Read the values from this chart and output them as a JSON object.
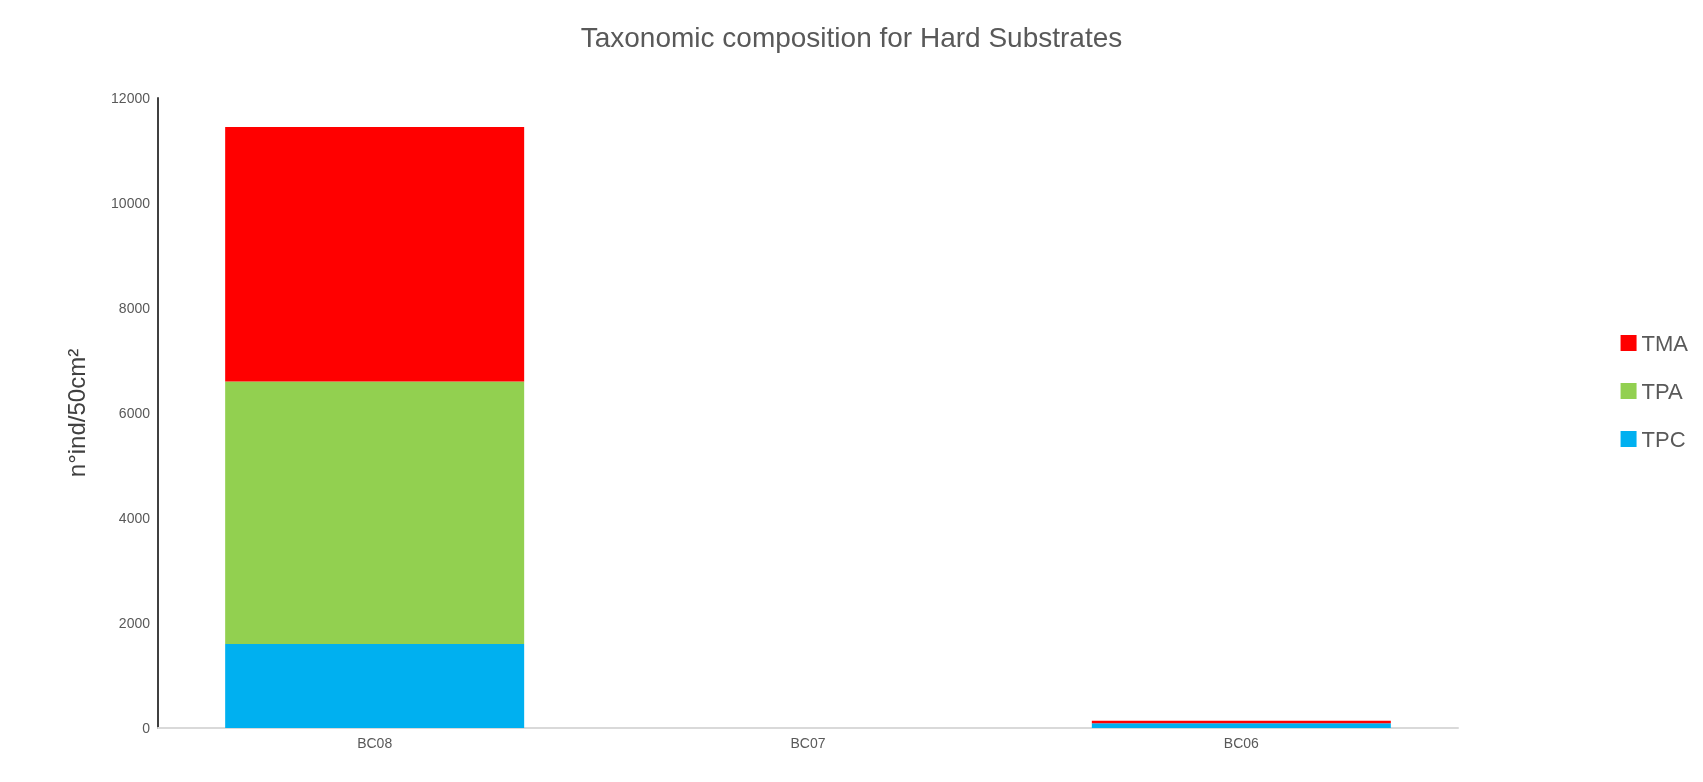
{
  "chart_data": {
    "type": "bar",
    "title": "Taxonomic composition for Hard Substrates",
    "ylabel": "n°ind/50cm²",
    "categories": [
      "BC08",
      "BC07",
      "BC06"
    ],
    "stacked": true,
    "series": [
      {
        "name": "TPC",
        "color": "#00b0f0",
        "values": [
          1600,
          0,
          90
        ]
      },
      {
        "name": "TPA",
        "color": "#92d050",
        "values": [
          5000,
          0,
          0
        ]
      },
      {
        "name": "TMA",
        "color": "#ff0000",
        "values": [
          4850,
          0,
          50
        ]
      }
    ],
    "ylim": [
      0,
      12000
    ],
    "yticks": [
      0,
      2000,
      4000,
      6000,
      8000,
      10000,
      12000
    ],
    "grid": false,
    "legend": "right"
  }
}
